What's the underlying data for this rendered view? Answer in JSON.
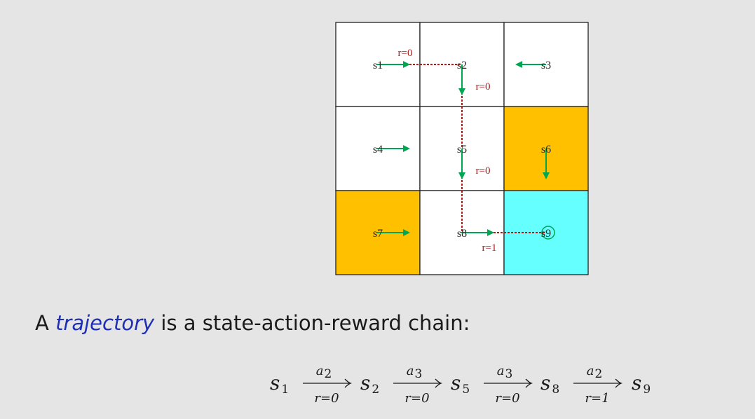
{
  "grid": {
    "colors": {
      "plain": "#ffffff",
      "forbidden": "#ffc000",
      "target": "#66ffff",
      "action_arrow": "#00a651",
      "trajectory": "#b01818",
      "border": "#222222"
    },
    "cells": [
      {
        "label": "s1",
        "type": "plain",
        "action": "right"
      },
      {
        "label": "s2",
        "type": "plain",
        "action": "down"
      },
      {
        "label": "s3",
        "type": "plain",
        "action": "left"
      },
      {
        "label": "s4",
        "type": "plain",
        "action": "right"
      },
      {
        "label": "s5",
        "type": "plain",
        "action": "down"
      },
      {
        "label": "s6",
        "type": "forbidden",
        "action": "down"
      },
      {
        "label": "s7",
        "type": "forbidden",
        "action": "right"
      },
      {
        "label": "s8",
        "type": "plain",
        "action": "right"
      },
      {
        "label": "s9",
        "type": "target",
        "action": "stay"
      }
    ],
    "trajectory": [
      "s1",
      "s2",
      "s5",
      "s8",
      "s9"
    ],
    "rewards": [
      "r=0",
      "r=0",
      "r=0",
      "r=1"
    ]
  },
  "sentence": {
    "prefix": "A ",
    "emphasis": "trajectory",
    "suffix": " is a state-action-reward chain:"
  },
  "chain": {
    "states": [
      {
        "base": "s",
        "sub": "1"
      },
      {
        "base": "s",
        "sub": "2"
      },
      {
        "base": "s",
        "sub": "5"
      },
      {
        "base": "s",
        "sub": "8"
      },
      {
        "base": "s",
        "sub": "9"
      }
    ],
    "transitions": [
      {
        "action": "a",
        "action_sub": "2",
        "reward": "r=0"
      },
      {
        "action": "a",
        "action_sub": "3",
        "reward": "r=0"
      },
      {
        "action": "a",
        "action_sub": "3",
        "reward": "r=0"
      },
      {
        "action": "a",
        "action_sub": "2",
        "reward": "r=1"
      }
    ]
  }
}
